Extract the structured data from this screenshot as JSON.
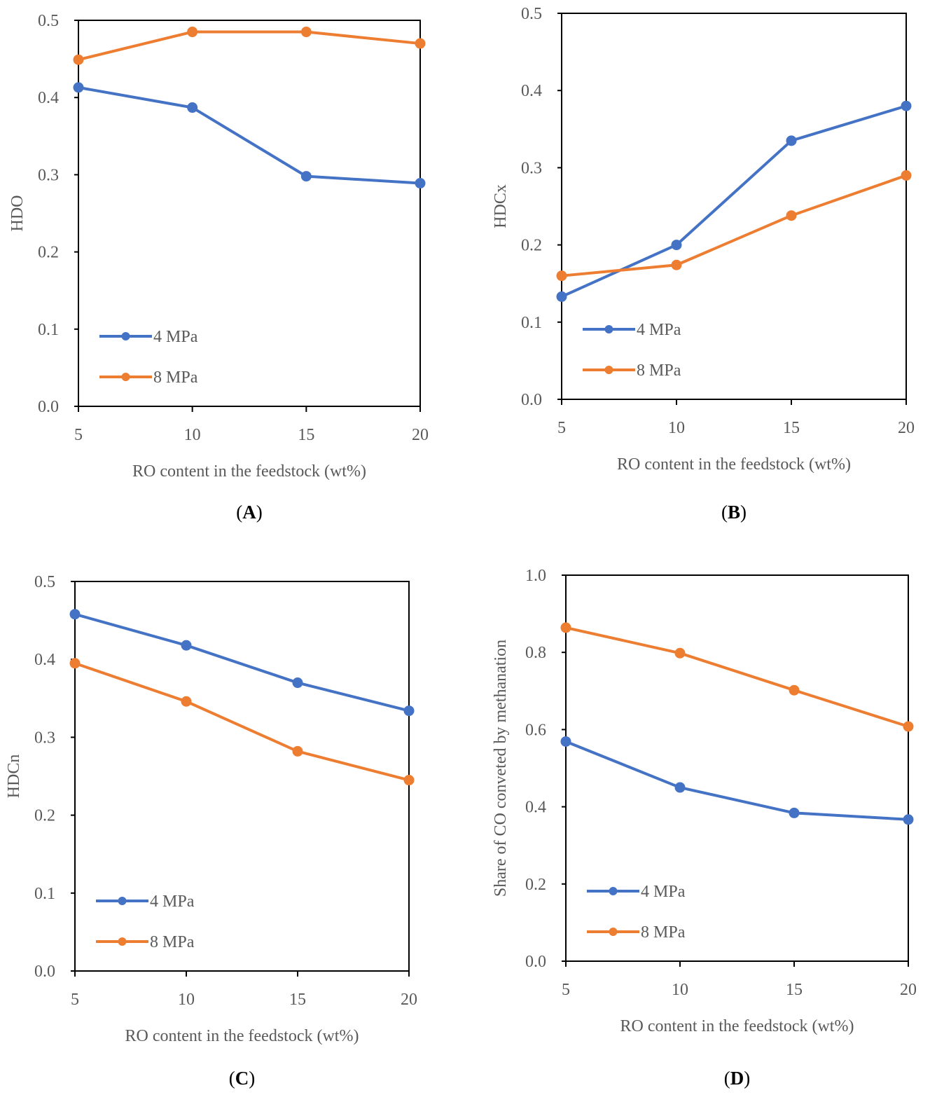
{
  "chart_data": [
    {
      "type": "line",
      "panel_label": "A",
      "title": "",
      "xlabel": "RO content in the feedstock (wt%)",
      "ylabel": "HDO",
      "xlim": [
        5,
        20
      ],
      "ylim": [
        0.0,
        0.5
      ],
      "x_ticks": [
        5,
        10,
        15,
        20
      ],
      "x_tick_labels": [
        "5",
        "10",
        "15",
        "20"
      ],
      "y_ticks": [
        0.0,
        0.1,
        0.2,
        0.3,
        0.4,
        0.5
      ],
      "y_tick_labels": [
        "0.0",
        "0.1",
        "0.2",
        "0.3",
        "0.4",
        "0.5"
      ],
      "grid": false,
      "legend_position": "bottom-left",
      "x": [
        5,
        10,
        15,
        20
      ],
      "series": [
        {
          "name": "4 MPa",
          "color": "#4472C4",
          "values": [
            0.413,
            0.387,
            0.298,
            0.289
          ]
        },
        {
          "name": "8 MPa",
          "color": "#ED7D31",
          "values": [
            0.449,
            0.485,
            0.485,
            0.47
          ]
        }
      ]
    },
    {
      "type": "line",
      "panel_label": "B",
      "title": "",
      "xlabel": "RO content in the feedstock (wt%)",
      "ylabel": "HDCx",
      "xlim": [
        5,
        20
      ],
      "ylim": [
        0.0,
        0.5
      ],
      "x_ticks": [
        5,
        10,
        15,
        20
      ],
      "x_tick_labels": [
        "5",
        "10",
        "15",
        "20"
      ],
      "y_ticks": [
        0.0,
        0.1,
        0.2,
        0.3,
        0.4,
        0.5
      ],
      "y_tick_labels": [
        "0.0",
        "0.1",
        "0.2",
        "0.3",
        "0.4",
        "0.5"
      ],
      "grid": false,
      "legend_position": "bottom-left",
      "x": [
        5,
        10,
        15,
        20
      ],
      "series": [
        {
          "name": "4 MPa",
          "color": "#4472C4",
          "values": [
            0.133,
            0.2,
            0.335,
            0.38
          ]
        },
        {
          "name": "8 MPa",
          "color": "#ED7D31",
          "values": [
            0.16,
            0.174,
            0.238,
            0.29
          ]
        }
      ]
    },
    {
      "type": "line",
      "panel_label": "C",
      "title": "",
      "xlabel": "RO content in the feedstock (wt%)",
      "ylabel": "HDCn",
      "xlim": [
        5,
        20
      ],
      "ylim": [
        0.0,
        0.5
      ],
      "x_ticks": [
        5,
        10,
        15,
        20
      ],
      "x_tick_labels": [
        "5",
        "10",
        "15",
        "20"
      ],
      "y_ticks": [
        0.0,
        0.1,
        0.2,
        0.3,
        0.4,
        0.5
      ],
      "y_tick_labels": [
        "0.0",
        "0.1",
        "0.2",
        "0.3",
        "0.4",
        "0.5"
      ],
      "grid": false,
      "legend_position": "bottom-left",
      "x": [
        5,
        10,
        15,
        20
      ],
      "series": [
        {
          "name": "4 MPa",
          "color": "#4472C4",
          "values": [
            0.458,
            0.418,
            0.37,
            0.334
          ]
        },
        {
          "name": "8 MPa",
          "color": "#ED7D31",
          "values": [
            0.395,
            0.346,
            0.282,
            0.245
          ]
        }
      ]
    },
    {
      "type": "line",
      "panel_label": "D",
      "title": "",
      "xlabel": "RO content in the feedstock (wt%)",
      "ylabel": "Share of CO conveted by methanation",
      "xlim": [
        5,
        20
      ],
      "ylim": [
        0.0,
        1.0
      ],
      "x_ticks": [
        5,
        10,
        15,
        20
      ],
      "x_tick_labels": [
        "5",
        "10",
        "15",
        "20"
      ],
      "y_ticks": [
        0.0,
        0.2,
        0.4,
        0.6,
        0.8,
        1.0
      ],
      "y_tick_labels": [
        "0.0",
        "0.2",
        "0.4",
        "0.6",
        "0.8",
        "1.0"
      ],
      "grid": false,
      "legend_position": "bottom-left",
      "x": [
        5,
        10,
        15,
        20
      ],
      "series": [
        {
          "name": "4 MPa",
          "color": "#4472C4",
          "values": [
            0.569,
            0.45,
            0.384,
            0.367
          ]
        },
        {
          "name": "8 MPa",
          "color": "#ED7D31",
          "values": [
            0.864,
            0.798,
            0.702,
            0.608
          ]
        }
      ]
    }
  ]
}
